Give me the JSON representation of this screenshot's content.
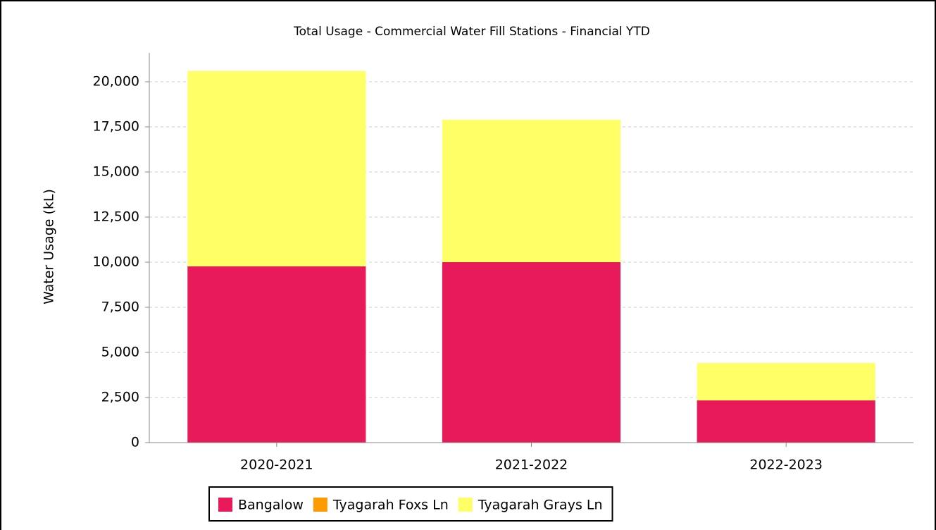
{
  "chart_data": {
    "type": "bar",
    "stacked": true,
    "title": "Total Usage - Commercial Water Fill Stations - Financial YTD",
    "y_label": "Water Usage (kL)",
    "categories": [
      "2020-2021",
      "2021-2022",
      "2022-2023"
    ],
    "series": [
      {
        "name": "Bangalow",
        "color": "#e91a59",
        "values": [
          9770,
          10000,
          2340
        ]
      },
      {
        "name": "Tyagarah Foxs Ln",
        "color": "#ff9a00",
        "values": [
          0,
          0,
          0
        ]
      },
      {
        "name": "Tyagarah Grays Ln",
        "color": "#ffff66",
        "values": [
          10820,
          7890,
          2070
        ]
      }
    ],
    "ylim": [
      0,
      21600
    ],
    "yticks": [
      0,
      {
        "value": 2500,
        "label": "2,500"
      },
      {
        "value": 5000,
        "label": "5,000"
      },
      {
        "value": 7500,
        "label": "7,500"
      },
      {
        "value": 10000,
        "label": "10,000"
      },
      {
        "value": 12500,
        "label": "12,500"
      },
      {
        "value": 15000,
        "label": "15,000"
      },
      {
        "value": 17500,
        "label": "17,500"
      },
      {
        "value": 20000,
        "label": "20,000"
      }
    ],
    "grid": true
  }
}
